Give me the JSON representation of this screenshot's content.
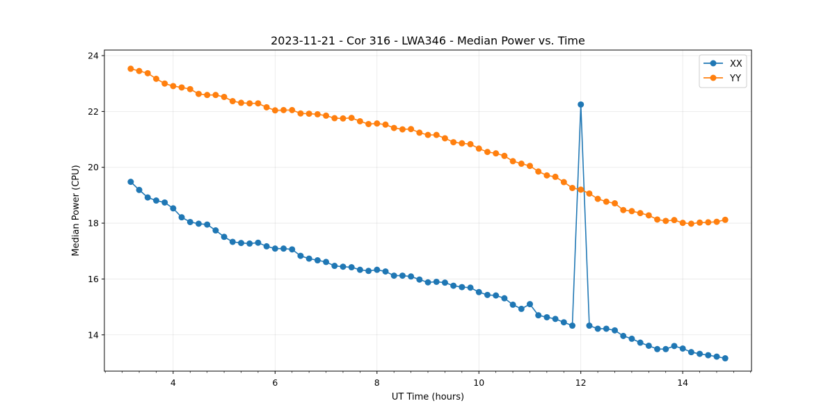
{
  "chart_data": {
    "type": "line",
    "title": "2023-11-21 - Cor 316 - LWA346 - Median Power vs. Time",
    "xlabel": "UT Time (hours)",
    "ylabel": "Median Power (CPU)",
    "xlim": [
      2.65,
      15.35
    ],
    "ylim": [
      12.7,
      24.2
    ],
    "xticks": [
      4,
      6,
      8,
      10,
      12,
      14
    ],
    "xtick_labels": [
      "4",
      "6",
      "8",
      "10",
      "12",
      "14"
    ],
    "xminor_step": 0.333333,
    "yticks": [
      14,
      16,
      18,
      20,
      22,
      24
    ],
    "ytick_labels": [
      "14",
      "16",
      "18",
      "20",
      "22",
      "24"
    ],
    "grid": true,
    "legend_position": "top-right",
    "x_start": 3.167,
    "x_step": 0.16667,
    "series": [
      {
        "name": "XX",
        "color": "#1f77b4",
        "values": [
          19.48,
          19.19,
          18.92,
          18.81,
          18.74,
          18.53,
          18.21,
          18.04,
          17.98,
          17.95,
          17.74,
          17.51,
          17.33,
          17.29,
          17.27,
          17.3,
          17.17,
          17.09,
          17.09,
          17.06,
          16.83,
          16.73,
          16.67,
          16.61,
          16.47,
          16.44,
          16.42,
          16.33,
          16.29,
          16.33,
          16.27,
          16.12,
          16.12,
          16.09,
          15.98,
          15.88,
          15.9,
          15.87,
          15.76,
          15.71,
          15.69,
          15.53,
          15.43,
          15.41,
          15.31,
          15.08,
          14.93,
          15.1,
          14.7,
          14.63,
          14.57,
          14.45,
          14.33,
          22.25,
          14.33,
          14.22,
          14.22,
          14.16,
          13.96,
          13.86,
          13.72,
          13.61,
          13.49,
          13.49,
          13.6,
          13.51,
          13.38,
          13.32,
          13.27,
          13.22,
          13.16
        ]
      },
      {
        "name": "YY",
        "color": "#ff7f0e",
        "values": [
          23.53,
          23.45,
          23.37,
          23.17,
          23.0,
          22.91,
          22.86,
          22.8,
          22.63,
          22.59,
          22.59,
          22.52,
          22.37,
          22.31,
          22.29,
          22.29,
          22.15,
          22.04,
          22.05,
          22.05,
          21.93,
          21.92,
          21.9,
          21.85,
          21.76,
          21.75,
          21.77,
          21.65,
          21.55,
          21.57,
          21.53,
          21.41,
          21.36,
          21.37,
          21.24,
          21.16,
          21.16,
          21.04,
          20.9,
          20.86,
          20.83,
          20.67,
          20.55,
          20.5,
          20.41,
          20.22,
          20.13,
          20.05,
          19.85,
          19.71,
          19.66,
          19.47,
          19.26,
          19.2,
          19.06,
          18.87,
          18.77,
          18.71,
          18.47,
          18.43,
          18.36,
          18.28,
          18.13,
          18.08,
          18.11,
          18.01,
          17.98,
          18.02,
          18.03,
          18.05,
          18.12
        ]
      }
    ]
  }
}
